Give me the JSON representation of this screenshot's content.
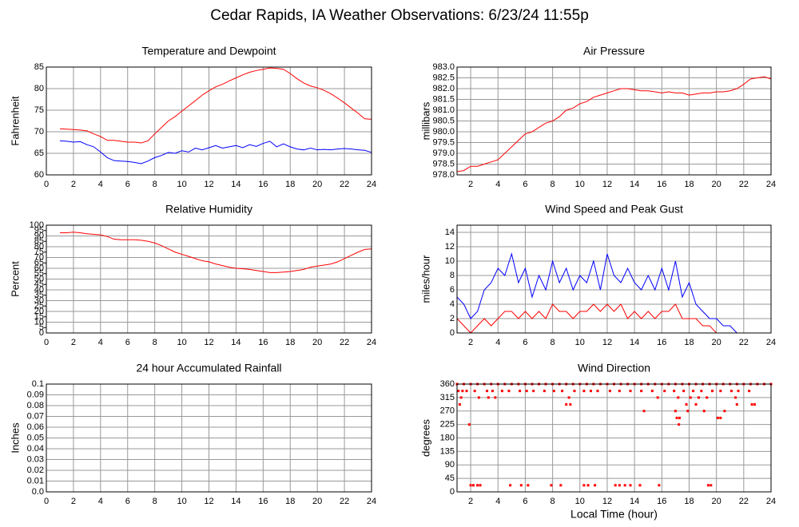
{
  "title": "Cedar Rapids, IA Weather Observations: 6/23/24 11:55p",
  "chart_data": [
    {
      "type": "line",
      "title": "Temperature and Dewpoint",
      "ylabel": "Fahrenheit",
      "xlim": [
        0,
        24
      ],
      "xticks": [
        0,
        2,
        4,
        6,
        8,
        10,
        12,
        14,
        16,
        18,
        20,
        22,
        24
      ],
      "ylim": [
        60,
        85
      ],
      "yticks": [
        60,
        65,
        70,
        75,
        80,
        85
      ],
      "grid": true,
      "x": [
        1,
        1.5,
        2,
        2.5,
        3,
        3.5,
        4,
        4.5,
        5,
        5.5,
        6,
        6.5,
        7,
        7.5,
        8,
        8.5,
        9,
        9.5,
        10,
        10.5,
        11,
        11.5,
        12,
        12.5,
        13,
        13.5,
        14,
        14.5,
        15,
        15.5,
        16,
        16.5,
        17,
        17.5,
        18,
        18.5,
        19,
        19.5,
        20,
        20.5,
        21,
        21.5,
        22,
        22.5,
        23,
        23.5,
        24
      ],
      "series": [
        {
          "color": "#ff0000",
          "values": [
            70.7,
            70.6,
            70.5,
            70.4,
            70.2,
            69.5,
            68.9,
            68.0,
            68.0,
            67.8,
            67.6,
            67.6,
            67.4,
            67.9,
            69.5,
            71.0,
            72.5,
            73.5,
            74.8,
            76.0,
            77.2,
            78.5,
            79.5,
            80.4,
            81.0,
            81.8,
            82.5,
            83.2,
            83.8,
            84.2,
            84.5,
            84.8,
            84.7,
            84.5,
            83.5,
            82.3,
            81.3,
            80.6,
            80.2,
            79.6,
            78.8,
            77.8,
            76.7,
            75.5,
            74.3,
            73.0,
            72.9
          ]
        },
        {
          "color": "#0000ff",
          "values": [
            67.9,
            67.8,
            67.6,
            67.7,
            67.0,
            66.5,
            65.3,
            64.0,
            63.3,
            63.2,
            63.1,
            62.9,
            62.6,
            63.2,
            64.0,
            64.5,
            65.2,
            65.0,
            65.6,
            65.3,
            66.2,
            65.8,
            66.3,
            66.8,
            66.2,
            66.5,
            66.8,
            66.3,
            67.0,
            66.6,
            67.3,
            67.8,
            66.5,
            67.2,
            66.5,
            66.0,
            65.8,
            66.2,
            65.8,
            65.9,
            65.8,
            66.0,
            66.1,
            66.0,
            65.8,
            65.7,
            65.2
          ]
        }
      ]
    },
    {
      "type": "line",
      "title": "Air Pressure",
      "ylabel": "millibars",
      "xlim": [
        1,
        24
      ],
      "xticks": [
        2,
        4,
        6,
        8,
        10,
        12,
        14,
        16,
        18,
        20,
        22,
        24
      ],
      "ylim": [
        978,
        983
      ],
      "yticks": [
        {
          "value": 978,
          "label": "978.0"
        },
        978.5,
        {
          "value": 979,
          "label": "979.0"
        },
        979.5,
        {
          "value": 980,
          "label": "980.0"
        },
        980.5,
        {
          "value": 981,
          "label": "981.0"
        },
        981.5,
        {
          "value": 982,
          "label": "982.0"
        },
        982.5,
        {
          "value": 983,
          "label": "983.0"
        }
      ],
      "grid": true,
      "x": [
        1,
        1.5,
        2,
        2.5,
        3,
        3.5,
        4,
        4.5,
        5,
        5.5,
        6,
        6.5,
        7,
        7.5,
        8,
        8.5,
        9,
        9.5,
        10,
        10.5,
        11,
        11.5,
        12,
        12.5,
        13,
        13.5,
        14,
        14.5,
        15,
        15.5,
        16,
        16.5,
        17,
        17.5,
        18,
        18.5,
        19,
        19.5,
        20,
        20.5,
        21,
        21.5,
        22,
        22.5,
        23,
        23.5,
        24
      ],
      "series": [
        {
          "color": "#ff0000",
          "values": [
            978.15,
            978.2,
            978.4,
            978.4,
            978.5,
            978.6,
            978.7,
            979.0,
            979.3,
            979.6,
            979.9,
            980.0,
            980.2,
            980.4,
            980.5,
            980.7,
            981.0,
            981.1,
            981.3,
            981.4,
            981.6,
            981.7,
            981.8,
            981.9,
            982.0,
            982.0,
            981.95,
            981.9,
            981.9,
            981.85,
            981.8,
            981.85,
            981.8,
            981.8,
            981.7,
            981.75,
            981.8,
            981.8,
            981.85,
            981.85,
            981.9,
            982.0,
            982.2,
            982.45,
            982.5,
            982.55,
            982.45
          ]
        }
      ]
    },
    {
      "type": "line",
      "title": "Relative Humidity",
      "ylabel": "Percent",
      "xlim": [
        0,
        24
      ],
      "xticks": [
        0,
        2,
        4,
        6,
        8,
        10,
        12,
        14,
        16,
        18,
        20,
        22,
        24
      ],
      "ylim": [
        0,
        100
      ],
      "yticks": [
        0,
        5,
        10,
        15,
        20,
        25,
        30,
        35,
        40,
        45,
        50,
        55,
        60,
        65,
        70,
        75,
        80,
        85,
        90,
        95,
        100
      ],
      "grid": true,
      "ygrid": [
        0,
        10,
        20,
        30,
        40,
        50,
        60,
        70,
        80,
        90,
        100
      ],
      "x": [
        1,
        1.5,
        2,
        2.5,
        3,
        3.5,
        4,
        4.5,
        5,
        5.5,
        6,
        6.5,
        7,
        7.5,
        8,
        8.5,
        9,
        9.5,
        10,
        10.5,
        11,
        11.5,
        12,
        12.5,
        13,
        13.5,
        14,
        14.5,
        15,
        15.5,
        16,
        16.5,
        17,
        17.5,
        18,
        18.5,
        19,
        19.5,
        20,
        20.5,
        21,
        21.5,
        22,
        22.5,
        23,
        23.5,
        24
      ],
      "series": [
        {
          "color": "#ff0000",
          "values": [
            93,
            93,
            93.5,
            93,
            92,
            91.5,
            91,
            89.5,
            87,
            86.5,
            86.5,
            86.5,
            86,
            85,
            83.5,
            81,
            78,
            75,
            73,
            71,
            69,
            67,
            66,
            64,
            62.5,
            61,
            60,
            59.5,
            59,
            58,
            57,
            56,
            56,
            56.5,
            57,
            58,
            59,
            61,
            62,
            63,
            64,
            66,
            69,
            72,
            75,
            77.5,
            78
          ]
        }
      ]
    },
    {
      "type": "line",
      "title": "Wind Speed and Peak Gust",
      "ylabel": "miles/hour",
      "xlim": [
        1,
        24
      ],
      "xticks": [
        2,
        4,
        6,
        8,
        10,
        12,
        14,
        16,
        18,
        20,
        22,
        24
      ],
      "ylim": [
        0,
        15
      ],
      "yticks": [
        0,
        2,
        4,
        6,
        8,
        10,
        12,
        14
      ],
      "grid": true,
      "x": [
        1,
        1.5,
        2,
        2.5,
        3,
        3.5,
        4,
        4.5,
        5,
        5.5,
        6,
        6.5,
        7,
        7.5,
        8,
        8.5,
        9,
        9.5,
        10,
        10.5,
        11,
        11.5,
        12,
        12.5,
        13,
        13.5,
        14,
        14.5,
        15,
        15.5,
        16,
        16.5,
        17,
        17.5,
        18,
        18.5,
        19,
        19.5,
        20,
        20.5,
        21,
        21.5,
        22,
        22.5,
        23,
        23.5,
        24
      ],
      "series": [
        {
          "color": "#0000ff",
          "values": [
            5,
            4,
            2,
            3,
            6,
            7,
            9,
            8,
            11,
            7,
            9,
            5,
            8,
            6,
            10,
            7,
            9,
            6,
            8,
            7,
            10,
            6,
            11,
            8,
            7,
            9,
            7,
            6,
            8,
            6,
            9,
            6,
            10,
            5,
            7,
            4,
            3,
            2,
            2,
            1,
            1,
            0,
            0,
            0,
            0,
            0,
            0
          ]
        },
        {
          "color": "#ff0000",
          "values": [
            2,
            1,
            0,
            1,
            2,
            1,
            2,
            3,
            3,
            2,
            3,
            2,
            3,
            2,
            4,
            3,
            3,
            2,
            3,
            3,
            4,
            3,
            4,
            3,
            4,
            2,
            3,
            2,
            3,
            2,
            3,
            3,
            4,
            2,
            2,
            2,
            1,
            1,
            0,
            0,
            0,
            0,
            0,
            0,
            0,
            0,
            0
          ]
        }
      ]
    },
    {
      "type": "line",
      "title": "24 hour Accumulated Rainfall",
      "ylabel": "Inches",
      "xlim": [
        0,
        24
      ],
      "xticks": [
        0,
        2,
        4,
        6,
        8,
        10,
        12,
        14,
        16,
        18,
        20,
        22,
        24
      ],
      "ylim": [
        0,
        0.1
      ],
      "yticks": [
        {
          "value": 0,
          "label": "0.0"
        },
        0.01,
        0.02,
        0.03,
        0.04,
        0.05,
        0.06,
        0.07,
        0.08,
        0.09,
        0.1
      ],
      "grid": true,
      "x": [
        1,
        24
      ],
      "series": [
        {
          "color": "#ff0000",
          "values": [
            0,
            0
          ]
        }
      ]
    },
    {
      "type": "scatter",
      "title": "Wind Direction",
      "ylabel": "degrees",
      "xlabel": "Local Time (hour)",
      "xlim": [
        1,
        24
      ],
      "xticks": [
        2,
        4,
        6,
        8,
        10,
        12,
        14,
        16,
        18,
        20,
        22,
        24
      ],
      "ylim": [
        0,
        360
      ],
      "yticks": [
        0,
        45,
        90,
        135,
        180,
        225,
        270,
        315,
        360
      ],
      "grid": true,
      "x": [
        1,
        1.5,
        2,
        2.5,
        3,
        3.5,
        4,
        4.5,
        5,
        5.5,
        6,
        6.5,
        7,
        7.5,
        8,
        8.5,
        9,
        9.5,
        10,
        10.5,
        11,
        11.5,
        12,
        12.5,
        13,
        13.5,
        14,
        14.5,
        15,
        15.5,
        16,
        16.5,
        17,
        17.5,
        18,
        18.5,
        19,
        19.5,
        20,
        20.5,
        21,
        21.5,
        22,
        22.5,
        23,
        23.5,
        24,
        1.1,
        1.4,
        1.7,
        2.3,
        3.2,
        3.6,
        4.3,
        4.8,
        5.6,
        6.1,
        6.6,
        7.4,
        8.1,
        8.7,
        9.6,
        10.3,
        10.8,
        11.3,
        12.2,
        12.9,
        13.7,
        14.5,
        15.3,
        16.2,
        16.9,
        17.6,
        18.3,
        18.9,
        19.7,
        20.3,
        21.1,
        21.6,
        22.4,
        1.3,
        2.6,
        3.3,
        3.8,
        9.2,
        15.7,
        17.2,
        18.1,
        18.7,
        19.3,
        21.4,
        1.2,
        9.0,
        9.3,
        17.8,
        18.5,
        21.5,
        22.6,
        22.8,
        14.7,
        17.0,
        17.9,
        19.1,
        20.6,
        17.1,
        17.3,
        20.1,
        20.3,
        1.9,
        17.25,
        2.0,
        2.2,
        2.5,
        2.7,
        4.9,
        5.7,
        6.2,
        7.9,
        8.6,
        10.3,
        10.6,
        11.1,
        12.6,
        12.9,
        13.3,
        13.7,
        14.4,
        15.8,
        19.4,
        19.6
      ],
      "series": [
        {
          "color": "#ff0000",
          "values": [
            360,
            360,
            360,
            360,
            360,
            360,
            360,
            360,
            360,
            360,
            360,
            360,
            360,
            360,
            360,
            360,
            360,
            360,
            360,
            360,
            360,
            360,
            360,
            360,
            360,
            360,
            360,
            360,
            360,
            360,
            360,
            360,
            360,
            360,
            360,
            360,
            360,
            360,
            360,
            360,
            360,
            360,
            360,
            360,
            360,
            360,
            360,
            337,
            337,
            337,
            337,
            337,
            337,
            337,
            337,
            337,
            337,
            337,
            337,
            337,
            337,
            337,
            337,
            337,
            337,
            337,
            337,
            337,
            337,
            337,
            337,
            337,
            337,
            337,
            337,
            337,
            337,
            337,
            337,
            337,
            315,
            315,
            315,
            315,
            315,
            315,
            315,
            315,
            315,
            315,
            315,
            292,
            292,
            292,
            292,
            292,
            292,
            292,
            292,
            270,
            270,
            270,
            270,
            270,
            247,
            247,
            247,
            247,
            225,
            225,
            22,
            22,
            22,
            22,
            22,
            22,
            22,
            22,
            22,
            22,
            22,
            22,
            22,
            22,
            22,
            22,
            22,
            22,
            22,
            22
          ]
        }
      ]
    }
  ]
}
